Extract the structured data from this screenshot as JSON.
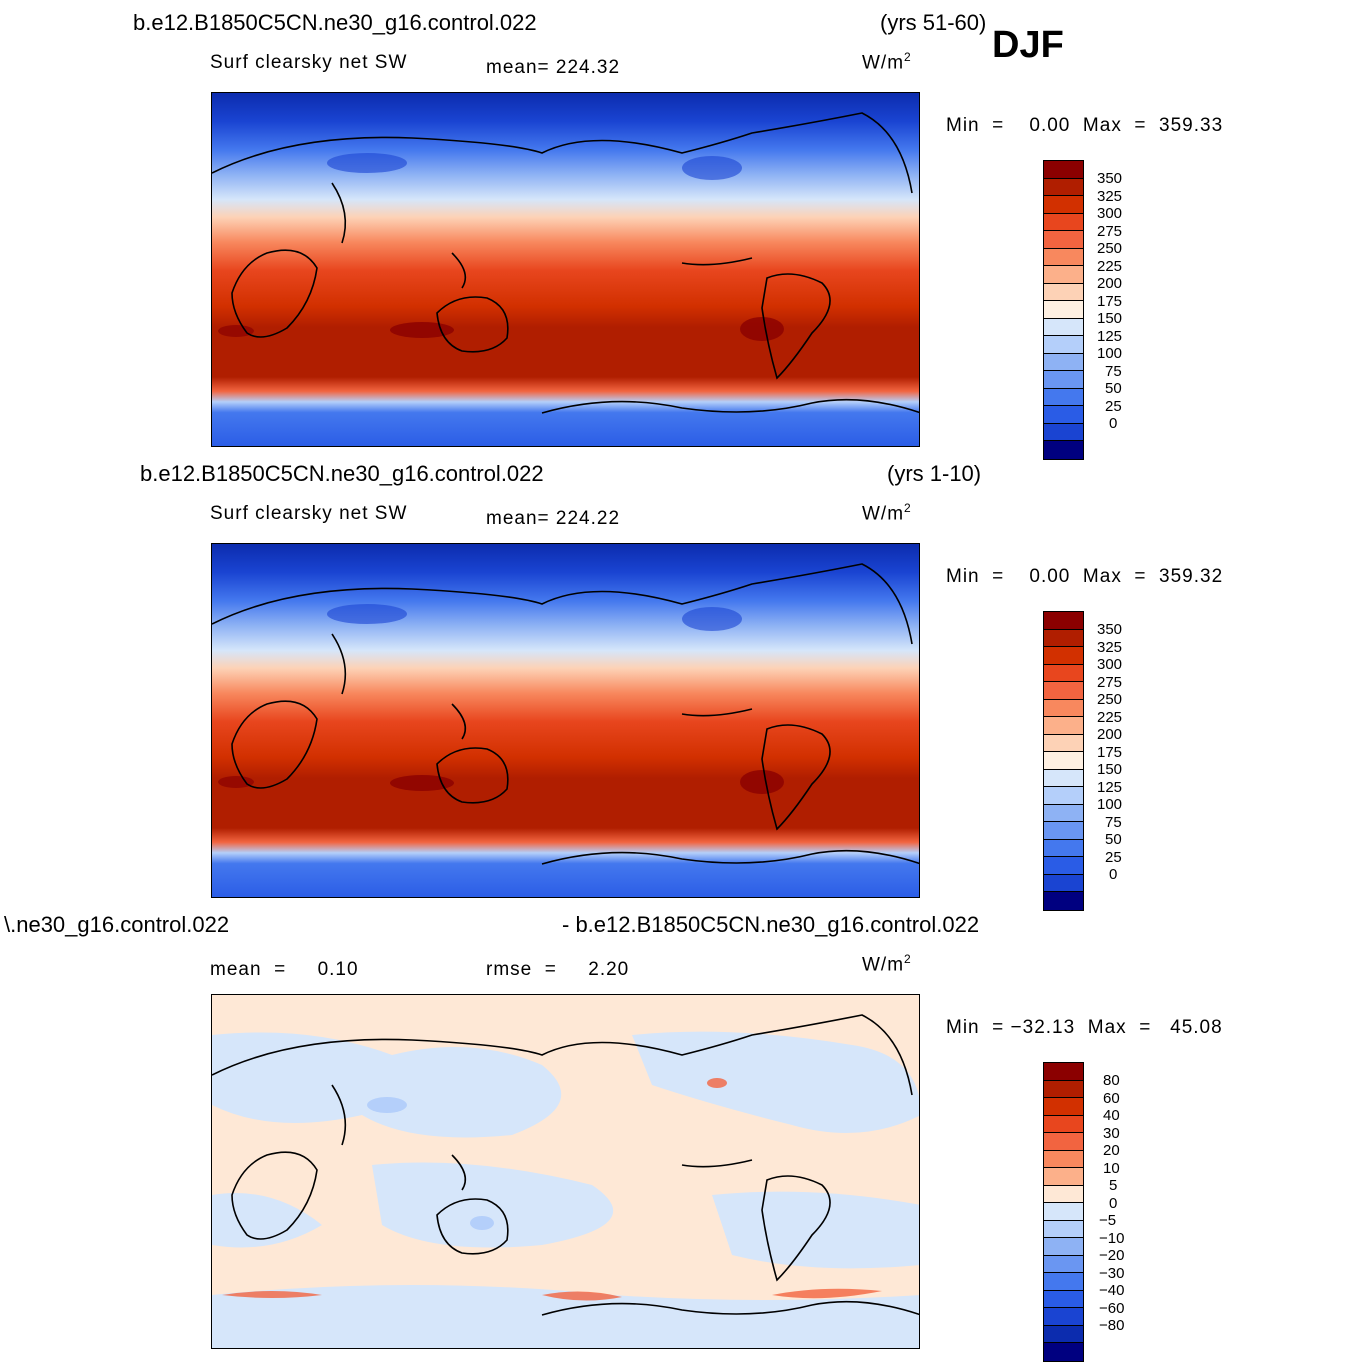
{
  "season": "DJF",
  "panels": [
    {
      "case": "b.e12.B1850C5CN.ne30_g16.control.022",
      "years": "(yrs 51-60)",
      "variable": "Surf  clearsky  net  SW",
      "stat": "mean=  224.32",
      "units": "W/m",
      "units_exp": "2",
      "minmax": "Min  =    0.00  Max  =  359.33"
    },
    {
      "case": "b.e12.B1850C5CN.ne30_g16.control.022",
      "years": "(yrs 1-10)",
      "variable": "Surf  clearsky  net  SW",
      "stat": "mean=  224.22",
      "units": "W/m",
      "units_exp": "2",
      "minmax": "Min  =    0.00  Max  =  359.32"
    },
    {
      "case_left": "\\.ne30_g16.control.022",
      "case_right": "- b.e12.B1850C5CN.ne30_g16.control.022",
      "stat1": "mean  =     0.10",
      "stat2": "rmse  =     2.20",
      "units": "W/m",
      "units_exp": "2",
      "minmax": "Min  = −32.13  Max  =   45.08"
    }
  ],
  "colorbar_abs": {
    "colors": [
      "#8b0000",
      "#b01e00",
      "#d23000",
      "#e8461e",
      "#f26440",
      "#f8885e",
      "#fcb08a",
      "#fdd2b6",
      "#fef0e2",
      "#d6e6fa",
      "#b4cffa",
      "#8eb2f4",
      "#6a96f2",
      "#4478ee",
      "#2a5ce6",
      "#1a44d2",
      "#0c2cae",
      "#000080"
    ],
    "labels": [
      "350",
      "325",
      "300",
      "275",
      "250",
      "225",
      "200",
      "175",
      "150",
      "125",
      "100",
      "75",
      "50",
      "25",
      "0"
    ]
  },
  "colorbar_diff": {
    "colors": [
      "#8b0000",
      "#b01e00",
      "#d23000",
      "#e8461e",
      "#f26440",
      "#f8885e",
      "#fcb08a",
      "#fee8d6",
      "#d6e6fa",
      "#b4cffa",
      "#8eb2f4",
      "#6a96f2",
      "#4478ee",
      "#2a5ce6",
      "#1a44d2",
      "#0c2cae",
      "#000080"
    ],
    "labels": [
      "80",
      "60",
      "40",
      "30",
      "20",
      "10",
      "5",
      "0",
      "−5",
      "−10",
      "−20",
      "−30",
      "−40",
      "−60",
      "−80"
    ]
  }
}
